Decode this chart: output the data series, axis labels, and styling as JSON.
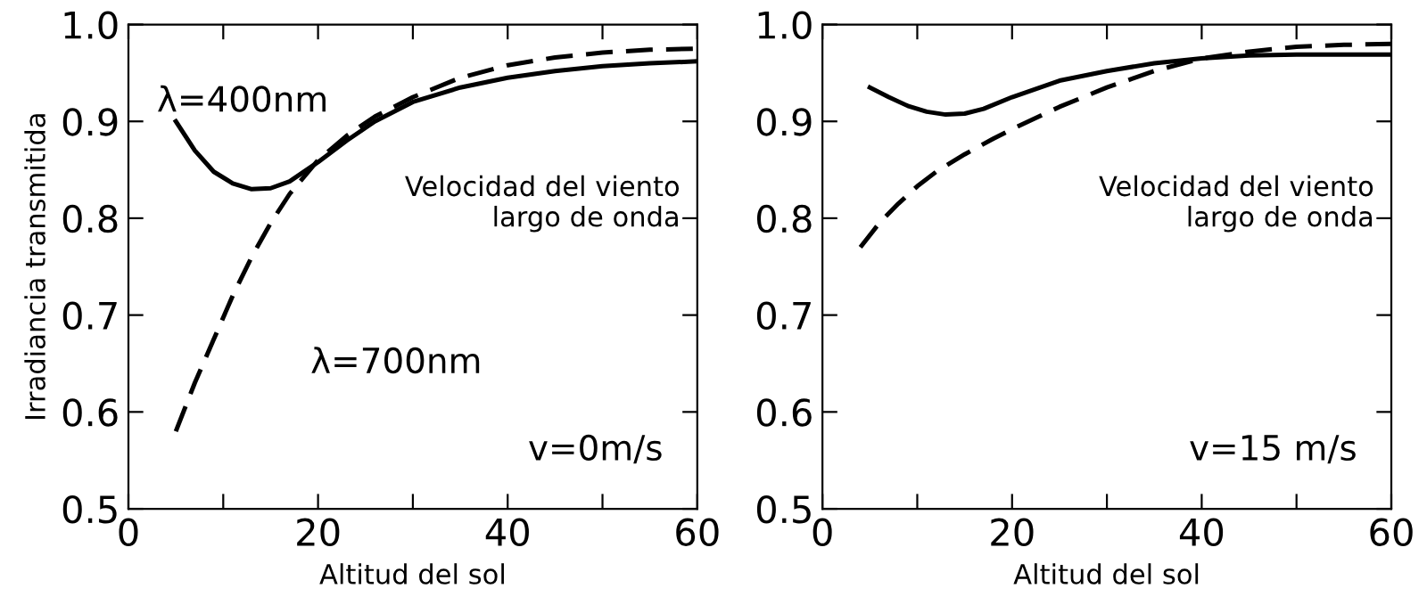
{
  "chart_data": [
    {
      "type": "line",
      "xlabel": "Altitud del sol",
      "ylabel": "Irradiancia transmitida",
      "xlim": [
        0,
        60
      ],
      "ylim": [
        0.5,
        1.0
      ],
      "xticks": [
        0,
        {
          "value": 10,
          "label": null
        },
        20,
        {
          "value": 30,
          "label": null
        },
        40,
        {
          "value": 50,
          "label": null
        },
        60
      ],
      "yticks": [
        0.5,
        0.6,
        0.7,
        0.8,
        0.9,
        {
          "value": 1.0,
          "label": "1.0"
        }
      ],
      "grid": false,
      "legend": false,
      "annotations": [
        "Velocidad del viento\nlargo de onda",
        "v=0m/s",
        "λ=400nm",
        "λ=700nm"
      ],
      "series": [
        {
          "color": "#000000",
          "line_style": "solid",
          "x": [
            5,
            7,
            9,
            11,
            13,
            15,
            17,
            20,
            23,
            26,
            30,
            35,
            40,
            45,
            50,
            55,
            60
          ],
          "values": [
            0.9,
            0.87,
            0.848,
            0.836,
            0.83,
            0.831,
            0.838,
            0.858,
            0.88,
            0.9,
            0.92,
            0.935,
            0.945,
            0.952,
            0.957,
            0.96,
            0.962
          ]
        },
        {
          "color": "#000000",
          "line_style": "dashed",
          "x": [
            5,
            7,
            9,
            11,
            13,
            15,
            17,
            20,
            23,
            26,
            30,
            35,
            40,
            45,
            50,
            55,
            60
          ],
          "values": [
            0.58,
            0.63,
            0.675,
            0.72,
            0.76,
            0.795,
            0.825,
            0.86,
            0.885,
            0.905,
            0.925,
            0.945,
            0.958,
            0.966,
            0.971,
            0.974,
            0.975
          ]
        }
      ]
    },
    {
      "type": "line",
      "xlabel": "Altitud del sol",
      "xlim": [
        0,
        60
      ],
      "ylim": [
        0.5,
        1.0
      ],
      "xticks": [
        0,
        {
          "value": 10,
          "label": null
        },
        20,
        {
          "value": 30,
          "label": null
        },
        40,
        {
          "value": 50,
          "label": null
        },
        60
      ],
      "yticks": [
        0.5,
        0.6,
        0.7,
        0.8,
        0.9,
        {
          "value": 1.0,
          "label": "1.0"
        }
      ],
      "grid": false,
      "legend": false,
      "annotations": [
        "Velocidad del viento\nlargo de onda",
        "v=15 m/s"
      ],
      "series": [
        {
          "color": "#000000",
          "line_style": "solid",
          "x": [
            5,
            7,
            9,
            11,
            13,
            15,
            17,
            20,
            25,
            30,
            35,
            40,
            45,
            50,
            55,
            60
          ],
          "values": [
            0.935,
            0.925,
            0.916,
            0.91,
            0.907,
            0.908,
            0.913,
            0.925,
            0.942,
            0.952,
            0.96,
            0.965,
            0.968,
            0.969,
            0.969,
            0.969
          ]
        },
        {
          "color": "#000000",
          "line_style": "dashed",
          "x": [
            4,
            6,
            8,
            10,
            12,
            15,
            18,
            20,
            25,
            30,
            35,
            40,
            45,
            50,
            55,
            60
          ],
          "values": [
            0.77,
            0.795,
            0.815,
            0.833,
            0.848,
            0.866,
            0.882,
            0.892,
            0.915,
            0.935,
            0.952,
            0.965,
            0.972,
            0.977,
            0.979,
            0.98
          ]
        }
      ]
    }
  ]
}
